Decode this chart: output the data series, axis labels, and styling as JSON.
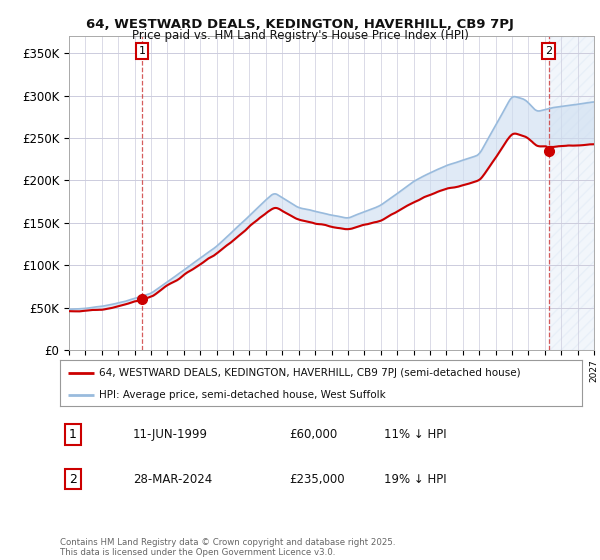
{
  "title1": "64, WESTWARD DEALS, KEDINGTON, HAVERHILL, CB9 7PJ",
  "title2": "Price paid vs. HM Land Registry's House Price Index (HPI)",
  "ytick_labels": [
    "£0",
    "£50K",
    "£100K",
    "£150K",
    "£200K",
    "£250K",
    "£300K",
    "£350K"
  ],
  "yticks": [
    0,
    50000,
    100000,
    150000,
    200000,
    250000,
    300000,
    350000
  ],
  "ylim": [
    0,
    370000
  ],
  "legend_label1": "64, WESTWARD DEALS, KEDINGTON, HAVERHILL, CB9 7PJ (semi-detached house)",
  "legend_label2": "HPI: Average price, semi-detached house, West Suffolk",
  "annotation1_date": "11-JUN-1999",
  "annotation1_price": "£60,000",
  "annotation1_hpi": "11% ↓ HPI",
  "annotation2_date": "28-MAR-2024",
  "annotation2_price": "£235,000",
  "annotation2_hpi": "19% ↓ HPI",
  "footer": "Contains HM Land Registry data © Crown copyright and database right 2025.\nThis data is licensed under the Open Government Licence v3.0.",
  "line1_color": "#cc0000",
  "line2_color": "#99bbdd",
  "line2_fill_color": "#ccddf0",
  "background_color": "#ffffff",
  "grid_color": "#ccccdd",
  "sale1_x": 1999.44,
  "sale1_y": 60000,
  "sale2_x": 2024.23,
  "sale2_y": 235000,
  "xmin": 1995,
  "xmax": 2027
}
